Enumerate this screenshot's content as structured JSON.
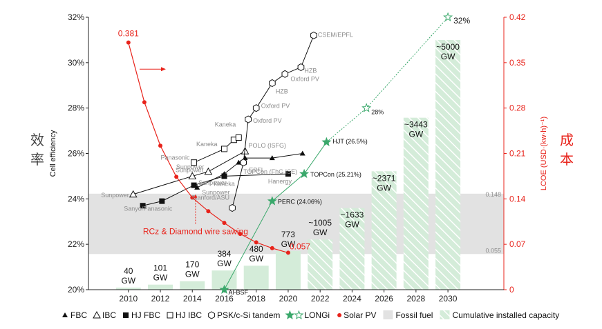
{
  "chart_data": {
    "type": "line",
    "x_ticks": [
      2010,
      2012,
      2014,
      2016,
      2018,
      2020,
      2022,
      2024,
      2026,
      2028,
      2030
    ],
    "xlim": [
      2007.5,
      2033.5
    ],
    "y_left": {
      "label": "Cell efficiency",
      "chinese_label": [
        "效",
        "率"
      ],
      "ylim": [
        20,
        32
      ],
      "ticks": [
        "20%",
        "22%",
        "24%",
        "26%",
        "28%",
        "30%",
        "32%"
      ],
      "tick_values": [
        20,
        22,
        24,
        26,
        28,
        30,
        32
      ]
    },
    "y_right": {
      "label": "LCOE (USD·(kw·h)⁻¹)",
      "chinese_label": [
        "成",
        "本"
      ],
      "ylim": [
        0,
        0.42
      ],
      "ticks": [
        "0",
        "0.07",
        "0.14",
        "0.21",
        "0.28",
        "0.35",
        "0.42"
      ],
      "tick_values": [
        0,
        0.07,
        0.14,
        0.21,
        0.28,
        0.35,
        0.42
      ]
    },
    "fossil_fuel_band": {
      "lcoe_range": [
        0.055,
        0.148
      ],
      "labels": [
        "0.148",
        "0.055"
      ],
      "color": "#e2e2e2"
    },
    "capacity_bars": [
      {
        "x": 2010,
        "label": [
          "40",
          "GW"
        ],
        "value_gw": 40,
        "solid": true
      },
      {
        "x": 2012,
        "label": [
          "101",
          "GW"
        ],
        "value_gw": 101,
        "solid": true
      },
      {
        "x": 2014,
        "label": [
          "170",
          "GW"
        ],
        "value_gw": 170,
        "solid": true
      },
      {
        "x": 2016,
        "label": [
          "384",
          "GW"
        ],
        "value_gw": 384,
        "solid": true
      },
      {
        "x": 2018,
        "label": [
          "480",
          "GW"
        ],
        "value_gw": 480,
        "solid": true
      },
      {
        "x": 2020,
        "label": [
          "773",
          "GW"
        ],
        "value_gw": 773,
        "solid": true
      },
      {
        "x": 2022,
        "label": [
          "~1005",
          "GW"
        ],
        "value_gw": 1005,
        "solid": false
      },
      {
        "x": 2024,
        "label": [
          "~1633",
          "GW"
        ],
        "value_gw": 1633,
        "solid": false
      },
      {
        "x": 2026,
        "label": [
          "~2371",
          "GW"
        ],
        "value_gw": 2371,
        "solid": false
      },
      {
        "x": 2028,
        "label": [
          "~3443",
          "GW"
        ],
        "value_gw": 3443,
        "solid": false
      },
      {
        "x": 2030,
        "label": [
          "~5000",
          "GW"
        ],
        "value_gw": 5000,
        "solid": false
      }
    ],
    "solar_pv_lcoe": {
      "color": "#e8231b",
      "points": [
        [
          2010,
          0.381
        ],
        [
          2011,
          0.289
        ],
        [
          2012,
          0.222
        ],
        [
          2013,
          0.174
        ],
        [
          2014,
          0.142
        ],
        [
          2015,
          0.121
        ],
        [
          2016,
          0.103
        ],
        [
          2017,
          0.086
        ],
        [
          2018,
          0.073
        ],
        [
          2019,
          0.064
        ],
        [
          2020,
          0.057
        ]
      ],
      "start_label": "0.381",
      "end_label": "0.057",
      "annotation": "RCz & Diamond wire sawing"
    },
    "longi": {
      "color": "#3aa86b",
      "actual": [
        {
          "x": 2016,
          "y": 20.0,
          "label": "Al-BSF"
        },
        {
          "x": 2019,
          "y": 23.9,
          "label": "PERC (24.06%)"
        },
        {
          "x": 2021,
          "y": 25.1,
          "label": "TOPCon (25.21%)"
        },
        {
          "x": 2022.4,
          "y": 26.5,
          "label": "HJT (26.5%)"
        }
      ],
      "projected": [
        {
          "x": 2024.9,
          "y": 28.0,
          "label": "28%"
        },
        {
          "x": 2030,
          "y": 32.0,
          "label": "32%"
        }
      ]
    },
    "fbc": [
      {
        "x": 2014.3,
        "y": 24.5,
        "label": "Sunpower"
      },
      {
        "x": 2016,
        "y": 25.1,
        "label": ""
      },
      {
        "x": 2016.9,
        "y": 25.6,
        "label": ""
      },
      {
        "x": 2017.3,
        "y": 25.8,
        "label": ""
      },
      {
        "x": 2019,
        "y": 25.8,
        "label": ""
      },
      {
        "x": 2020.9,
        "y": 26.0,
        "label": ""
      }
    ],
    "ibc": [
      {
        "x": 2010.3,
        "y": 24.2,
        "label": "Sunpower"
      },
      {
        "x": 2014,
        "y": 25.0,
        "label": "Sunpower"
      },
      {
        "x": 2015,
        "y": 25.2,
        "label": "Sunpower"
      },
      {
        "x": 2017.3,
        "y": 26.1,
        "label": "POLO (ISFG)"
      }
    ],
    "hj_fbc": [
      {
        "x": 2010.9,
        "y": 23.7,
        "label": ""
      },
      {
        "x": 2012.1,
        "y": 23.9,
        "label": "Sanyo/Panasonic"
      },
      {
        "x": 2014.1,
        "y": 24.6,
        "label": ""
      },
      {
        "x": 2016,
        "y": 25.0,
        "label": "Kaneka"
      },
      {
        "x": 2020,
        "y": 25.1,
        "label": "Hanergy"
      }
    ],
    "hj_ibc": [
      {
        "x": 2014.1,
        "y": 25.6,
        "label": "Panasonic"
      },
      {
        "x": 2016,
        "y": 26.2,
        "label": "Kaneka"
      },
      {
        "x": 2016.6,
        "y": 26.6,
        "label": ""
      },
      {
        "x": 2016.9,
        "y": 26.7,
        "label": "Kaneka"
      }
    ],
    "psk_si_tandem": [
      {
        "x": 2016.5,
        "y": 23.6,
        "label": "Stanford/ASU"
      },
      {
        "x": 2017.2,
        "y": 25.6,
        "label": "EPFL"
      },
      {
        "x": 2017.5,
        "y": 27.5,
        "label": "Oxford PV"
      },
      {
        "x": 2018,
        "y": 28.0,
        "label": "Oxford PV"
      },
      {
        "x": 2019,
        "y": 29.1,
        "label": "HZB"
      },
      {
        "x": 2019.8,
        "y": 29.5,
        "label": "Oxford PV"
      },
      {
        "x": 2020.8,
        "y": 29.8,
        "label": "HZB"
      },
      {
        "x": 2021.6,
        "y": 31.2,
        "label": "CSEM/EPFL"
      }
    ],
    "extra_labels": {
      "topcon_fhg": "TOPCon (FhG ISE)",
      "sunpower_2": "Sunpower"
    },
    "legend": [
      {
        "symbol": "fbc",
        "label": "FBC"
      },
      {
        "symbol": "ibc",
        "label": "IBC"
      },
      {
        "symbol": "hjfbc",
        "label": "HJ FBC"
      },
      {
        "symbol": "hjibc",
        "label": "HJ IBC"
      },
      {
        "symbol": "psk",
        "label": "PSK/c-Si tandem"
      },
      {
        "symbol": "longi",
        "label": "LONGi"
      },
      {
        "symbol": "solar",
        "label": "Solar PV"
      },
      {
        "symbol": "fossil",
        "label": "Fossil fuel"
      },
      {
        "symbol": "capacity",
        "label": "Cumulative installed capacity"
      }
    ]
  }
}
